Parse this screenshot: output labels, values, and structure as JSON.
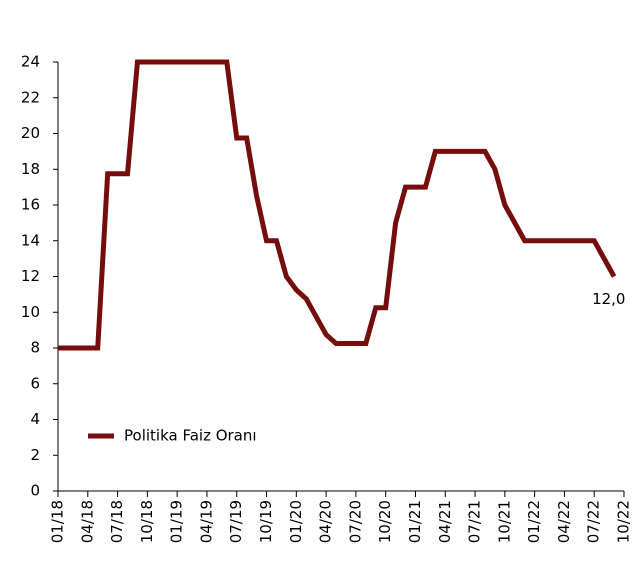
{
  "chart_data": {
    "type": "line",
    "categories": [
      "01/18",
      null,
      null,
      "04/18",
      null,
      null,
      "07/18",
      null,
      null,
      "10/18",
      null,
      null,
      "01/19",
      null,
      null,
      "04/19",
      null,
      null,
      "07/19",
      null,
      null,
      "10/19",
      null,
      null,
      "01/20",
      null,
      null,
      "04/20",
      null,
      null,
      "07/20",
      null,
      null,
      "10/20",
      null,
      null,
      "01/21",
      null,
      null,
      "04/21",
      null,
      null,
      "07/21",
      null,
      null,
      "10/21",
      null,
      null,
      "01/22",
      null,
      null,
      "04/22",
      null,
      null,
      "07/22",
      null,
      null,
      "10/22"
    ],
    "series": [
      {
        "name": "Politika Faiz Oranı",
        "color": "#750d0d",
        "values": [
          8,
          8,
          8,
          8,
          8,
          17.75,
          17.75,
          17.75,
          24,
          24,
          24,
          24,
          24,
          24,
          24,
          24,
          24,
          24,
          19.75,
          19.75,
          16.5,
          14,
          14,
          12,
          11.25,
          10.75,
          9.75,
          8.75,
          8.25,
          8.25,
          8.25,
          8.25,
          10.25,
          10.25,
          15,
          17,
          17,
          17,
          19,
          19,
          19,
          19,
          19,
          19,
          18,
          16,
          15,
          14,
          14,
          14,
          14,
          14,
          14,
          14,
          14,
          13,
          12,
          null
        ],
        "value_labels": [
          null,
          null,
          null,
          null,
          null,
          null,
          null,
          null,
          null,
          null,
          null,
          null,
          null,
          null,
          null,
          null,
          null,
          null,
          null,
          null,
          null,
          null,
          null,
          null,
          null,
          null,
          null,
          null,
          null,
          null,
          null,
          null,
          null,
          null,
          null,
          null,
          null,
          null,
          null,
          null,
          null,
          null,
          null,
          null,
          null,
          null,
          null,
          null,
          null,
          null,
          null,
          null,
          null,
          null,
          null,
          null,
          "12,0",
          null
        ]
      }
    ],
    "ylim": [
      0,
      24
    ],
    "yticks": [
      0,
      2,
      4,
      6,
      8,
      10,
      12,
      14,
      16,
      18,
      20,
      22,
      24
    ],
    "legend": "lower left"
  }
}
